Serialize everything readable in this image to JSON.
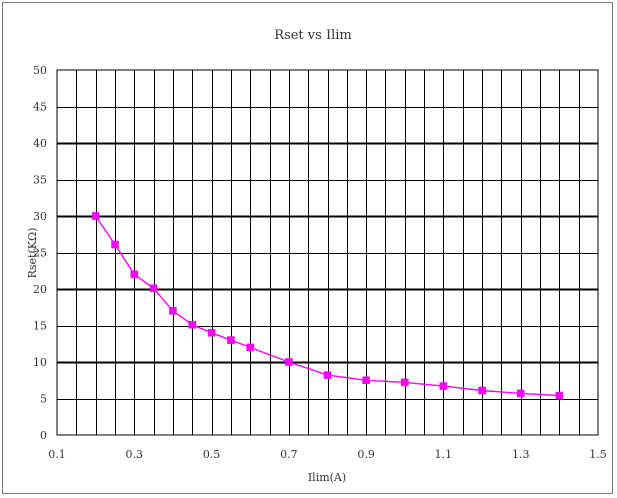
{
  "chart_data": {
    "type": "line",
    "title": "Rset vs Ilim",
    "xlabel": "Ilim(A)",
    "ylabel": "Rset(KΩ)",
    "xlim": [
      0.1,
      1.5
    ],
    "ylim": [
      0,
      50
    ],
    "x_ticks": [
      "0.1",
      "0.3",
      "0.5",
      "0.7",
      "0.9",
      "1.1",
      "1.3",
      "1.5"
    ],
    "y_ticks": [
      "0",
      "5",
      "10",
      "15",
      "20",
      "25",
      "30",
      "35",
      "40",
      "45",
      "50"
    ],
    "grid": true,
    "color": "#ff00ff",
    "series": [
      {
        "x": [
          0.2,
          0.25,
          0.3,
          0.35,
          0.4,
          0.45,
          0.5,
          0.55,
          0.6,
          0.7,
          0.8,
          0.9,
          1.0,
          1.1,
          1.2,
          1.3,
          1.4
        ],
        "y": [
          30,
          26.1,
          22,
          20.1,
          17,
          15.1,
          14,
          13,
          12,
          10,
          8.2,
          7.5,
          7.2,
          6.7,
          6.1,
          5.7,
          5.4
        ]
      }
    ]
  }
}
